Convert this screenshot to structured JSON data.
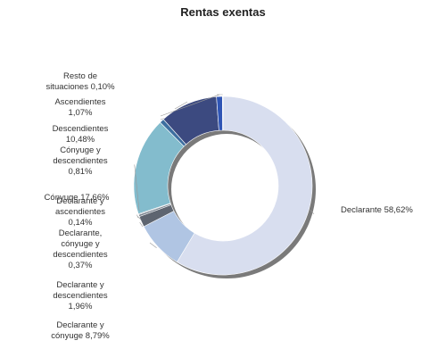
{
  "chart_data": {
    "type": "pie",
    "title": "Rentas exentas",
    "donut": true,
    "series": [
      {
        "name": "Declarante",
        "value": 58.62,
        "label": "Declarante 58,62%",
        "color": "#d8deef"
      },
      {
        "name": "Declarante y cónyuge",
        "value": 8.79,
        "label": "Declarante y\ncónyuge 8,79%",
        "color": "#b0c5e3"
      },
      {
        "name": "Declarante y descendientes",
        "value": 1.96,
        "label": "Declarante y\ndescendientes\n1,96%",
        "color": "#5e6570"
      },
      {
        "name": "Declarante, cónyuge y descendientes",
        "value": 0.37,
        "label": "Declarante,\ncónyuge y\ndescendientes\n0,37%",
        "color": "#7b8590"
      },
      {
        "name": "Declarante y ascendientes",
        "value": 0.14,
        "label": "Declarante y\nascendientes\n0,14%",
        "color": "#4a5a6a"
      },
      {
        "name": "Cónyuge",
        "value": 17.66,
        "label": "Cónyuge 17,66%",
        "color": "#83bccd"
      },
      {
        "name": "Cónyuge y descendientes",
        "value": 0.81,
        "label": "Cónyuge y\ndescendientes\n0,81%",
        "color": "#3d6fa0"
      },
      {
        "name": "Descendientes",
        "value": 10.48,
        "label": "Descendientes\n10,48%",
        "color": "#3c4a80"
      },
      {
        "name": "Ascendientes",
        "value": 1.07,
        "label": "Ascendientes\n1,07%",
        "color": "#2f55b5"
      },
      {
        "name": "Resto de situaciones",
        "value": 0.1,
        "label": "Resto de\nsituaciones 0,10%",
        "color": "#8aa0b8"
      }
    ]
  }
}
